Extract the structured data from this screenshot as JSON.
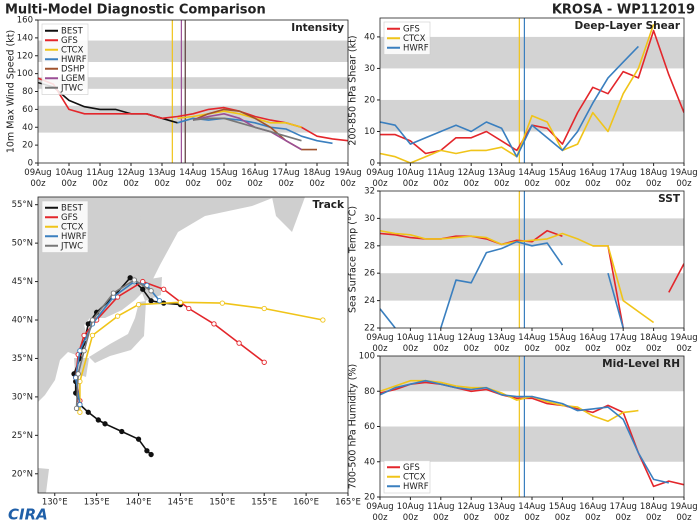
{
  "header": {
    "title": "Multi-Model Diagnostic Comparison",
    "storm": "KROSA - WP112019"
  },
  "logo": "CIRA",
  "chart_data": [
    {
      "type": "line",
      "title": "Intensity",
      "ylabel": "10m Max Wind Speed (kt)",
      "legend": "upper left",
      "x": [
        0,
        12,
        24,
        36,
        48,
        60,
        72,
        84,
        96,
        108,
        120,
        132,
        144,
        156,
        168,
        180,
        192,
        204,
        216,
        228,
        240
      ],
      "xlim": [
        0,
        240
      ],
      "xticks": [
        {
          "value": 0,
          "label": "09Aug 00z"
        },
        {
          "value": 24,
          "label": "10Aug 00z"
        },
        {
          "value": 48,
          "label": "11Aug 00z"
        },
        {
          "value": 72,
          "label": "12Aug 00z"
        },
        {
          "value": 96,
          "label": "13Aug 00z"
        },
        {
          "value": 120,
          "label": "14Aug 00z"
        },
        {
          "value": 144,
          "label": "15Aug 00z"
        },
        {
          "value": 168,
          "label": "16Aug 00z"
        },
        {
          "value": 192,
          "label": "17Aug 00z"
        },
        {
          "value": 216,
          "label": "18Aug 00z"
        },
        {
          "value": 240,
          "label": "19Aug 00z"
        }
      ],
      "ylim": [
        0,
        160
      ],
      "yticks": [
        0,
        20,
        40,
        60,
        80,
        100,
        120,
        140,
        160
      ],
      "bands": [
        [
          34,
          64
        ],
        [
          83,
          96
        ],
        [
          113,
          137
        ]
      ],
      "vlines": [
        {
          "x": 104,
          "color": "#f0c419"
        },
        {
          "x": 111,
          "color": "#9b4f96"
        },
        {
          "x": 114,
          "color": "#5a3a3a"
        }
      ],
      "series": [
        {
          "name": "BEST",
          "color": "#111111",
          "values": [
            90,
            85,
            70,
            63,
            60,
            60,
            55,
            55,
            50,
            45,
            null,
            null,
            null,
            null,
            null,
            null,
            null,
            null,
            null,
            null,
            null
          ]
        },
        {
          "name": "GFS",
          "color": "#e3262b",
          "values": [
            95,
            88,
            60,
            55,
            55,
            55,
            55,
            55,
            50,
            52,
            55,
            60,
            62,
            58,
            52,
            48,
            45,
            40,
            30,
            27,
            25
          ]
        },
        {
          "name": "CTCX",
          "color": "#f0c419",
          "values": [
            null,
            null,
            null,
            null,
            null,
            null,
            null,
            null,
            null,
            50,
            52,
            55,
            58,
            55,
            50,
            45,
            45,
            40,
            null,
            null,
            null
          ]
        },
        {
          "name": "HWRF",
          "color": "#3a7fbf",
          "values": [
            null,
            null,
            null,
            null,
            null,
            null,
            null,
            null,
            null,
            45,
            50,
            48,
            50,
            48,
            45,
            40,
            38,
            30,
            25,
            22,
            null
          ]
        },
        {
          "name": "DSHP",
          "color": "#a0522d",
          "values": [
            null,
            null,
            null,
            null,
            null,
            null,
            null,
            null,
            null,
            null,
            48,
            55,
            60,
            58,
            50,
            40,
            25,
            15,
            15,
            null,
            null
          ]
        },
        {
          "name": "LGEM",
          "color": "#9b4f96",
          "values": [
            null,
            null,
            null,
            null,
            null,
            null,
            null,
            null,
            null,
            null,
            48,
            52,
            55,
            50,
            40,
            35,
            25,
            15,
            null,
            null,
            null
          ]
        },
        {
          "name": "JTWC",
          "color": "#777777",
          "values": [
            null,
            null,
            null,
            null,
            null,
            null,
            null,
            null,
            null,
            null,
            48,
            50,
            50,
            45,
            40,
            35,
            30,
            25,
            null,
            null,
            null
          ]
        }
      ]
    },
    {
      "type": "line",
      "title": "Deep-Layer Shear",
      "ylabel": "200-850 hPa Shear (kt)",
      "legend": "upper left",
      "x": [
        0,
        12,
        24,
        36,
        48,
        60,
        72,
        84,
        96,
        108,
        120,
        132,
        144,
        156,
        168,
        180,
        192,
        204,
        216,
        228,
        240
      ],
      "xlim": [
        0,
        240
      ],
      "xticks": [
        {
          "value": 0,
          "label": "09Aug 00z"
        },
        {
          "value": 24,
          "label": "10Aug 00z"
        },
        {
          "value": 48,
          "label": "11Aug 00z"
        },
        {
          "value": 72,
          "label": "12Aug 00z"
        },
        {
          "value": 96,
          "label": "13Aug 00z"
        },
        {
          "value": 120,
          "label": "14Aug 00z"
        },
        {
          "value": 144,
          "label": "15Aug 00z"
        },
        {
          "value": 168,
          "label": "16Aug 00z"
        },
        {
          "value": 192,
          "label": "17Aug 00z"
        },
        {
          "value": 216,
          "label": "18Aug 00z"
        },
        {
          "value": 240,
          "label": "19Aug 00z"
        }
      ],
      "ylim": [
        0,
        46
      ],
      "yticks": [
        0,
        10,
        20,
        30,
        40
      ],
      "bands": [
        [
          10,
          20
        ],
        [
          30,
          40
        ]
      ],
      "vlines": [
        {
          "x": 110,
          "color": "#f0c419"
        },
        {
          "x": 114,
          "color": "#3a7fbf"
        }
      ],
      "series": [
        {
          "name": "GFS",
          "color": "#e3262b",
          "values": [
            9,
            9,
            7,
            3,
            4,
            8,
            8,
            10,
            7,
            4,
            12,
            11,
            6,
            16,
            24,
            22,
            29,
            27,
            42,
            28,
            16
          ]
        },
        {
          "name": "CTCX",
          "color": "#f0c419",
          "values": [
            3,
            2,
            0,
            2,
            4,
            3,
            4,
            4,
            5,
            2,
            15,
            13,
            4,
            6,
            16,
            10,
            22,
            30,
            44,
            null,
            null
          ]
        },
        {
          "name": "HWRF",
          "color": "#3a7fbf",
          "values": [
            13,
            12,
            6,
            8,
            10,
            12,
            10,
            13,
            11,
            2,
            12,
            8,
            4,
            10,
            19,
            27,
            32,
            37,
            null,
            null,
            null
          ]
        }
      ]
    },
    {
      "type": "line",
      "title": "Track",
      "legend": "upper left",
      "markers": true,
      "xlim": [
        128,
        165
      ],
      "xticks": [
        {
          "value": 130,
          "label": "130°E"
        },
        {
          "value": 135,
          "label": "135°E"
        },
        {
          "value": 140,
          "label": "140°E"
        },
        {
          "value": 145,
          "label": "145°E"
        },
        {
          "value": 150,
          "label": "150°E"
        },
        {
          "value": 155,
          "label": "155°E"
        },
        {
          "value": 160,
          "label": "160°E"
        },
        {
          "value": 165,
          "label": "165°E"
        }
      ],
      "ylim": [
        17.5,
        56
      ],
      "yticks": [
        {
          "value": 20,
          "label": "20°N"
        },
        {
          "value": 25,
          "label": "25°N"
        },
        {
          "value": 30,
          "label": "30°N"
        },
        {
          "value": 35,
          "label": "35°N"
        },
        {
          "value": 40,
          "label": "40°N"
        },
        {
          "value": 45,
          "label": "45°N"
        },
        {
          "value": 50,
          "label": "50°N"
        },
        {
          "value": 55,
          "label": "55°N"
        }
      ],
      "series": [
        {
          "name": "BEST",
          "color": "#111111",
          "marker_fill": true,
          "x": [
            141.5,
            141.0,
            140.0,
            138.0,
            136.0,
            135.2,
            134.0,
            133.0,
            132.5,
            132.5,
            132.3,
            133.0,
            133.5,
            134.0,
            135.0,
            137.0,
            139.0,
            140.5,
            141.5,
            143.0,
            145.0
          ],
          "values": [
            22.5,
            23.0,
            24.5,
            25.5,
            26.5,
            27.0,
            28.0,
            29.0,
            30.5,
            32.0,
            33.0,
            35.0,
            37.0,
            39.5,
            41.0,
            43.0,
            45.5,
            44.0,
            42.5,
            42.2,
            42.0
          ]
        },
        {
          "name": "GFS",
          "color": "#e3262b",
          "x": [
            133,
            132.5,
            132.8,
            133.5,
            135,
            137.5,
            140.5,
            143,
            146,
            149,
            152,
            155
          ],
          "values": [
            29.5,
            32.5,
            35.5,
            38.0,
            40.0,
            43.0,
            45.0,
            44.0,
            41.5,
            39.5,
            37.0,
            34.5
          ]
        },
        {
          "name": "CTCX",
          "color": "#f0c419",
          "x": [
            133,
            133,
            134.5,
            137.5,
            140,
            145,
            150,
            155,
            162
          ],
          "values": [
            28,
            32,
            38,
            40.5,
            42,
            42.3,
            42.2,
            41.5,
            40
          ]
        },
        {
          "name": "HWRF",
          "color": "#3a7fbf",
          "x": [
            133,
            132.5,
            133,
            134.5,
            137,
            139.5,
            141,
            142.5
          ],
          "values": [
            29,
            32.5,
            36,
            39.5,
            43,
            45,
            44.5,
            42.5
          ]
        },
        {
          "name": "JTWC",
          "color": "#777777",
          "x": [
            132.6,
            132.8,
            133.5,
            134.5,
            137,
            139.5,
            141.5
          ],
          "values": [
            28.5,
            33,
            36,
            40,
            43.5,
            45.2,
            43.8
          ]
        }
      ]
    },
    {
      "type": "line",
      "title": "SST",
      "ylabel": "Sea Surface Temp (°C)",
      "x": [
        0,
        12,
        24,
        36,
        48,
        60,
        72,
        84,
        96,
        108,
        120,
        132,
        144,
        156,
        168,
        180,
        192,
        204,
        216,
        228,
        240
      ],
      "xlim": [
        0,
        240
      ],
      "xticks": [
        {
          "value": 0,
          "label": "09Aug 00z"
        },
        {
          "value": 24,
          "label": "10Aug 00z"
        },
        {
          "value": 48,
          "label": "11Aug 00z"
        },
        {
          "value": 72,
          "label": "12Aug 00z"
        },
        {
          "value": 96,
          "label": "13Aug 00z"
        },
        {
          "value": 120,
          "label": "14Aug 00z"
        },
        {
          "value": 144,
          "label": "15Aug 00z"
        },
        {
          "value": 168,
          "label": "16Aug 00z"
        },
        {
          "value": 192,
          "label": "17Aug 00z"
        },
        {
          "value": 216,
          "label": "18Aug 00z"
        },
        {
          "value": 240,
          "label": "19Aug 00z"
        }
      ],
      "ylim": [
        22,
        32
      ],
      "yticks": [
        22,
        24,
        26,
        28,
        30,
        32
      ],
      "bands": [
        [
          24,
          26
        ],
        [
          28,
          30
        ]
      ],
      "vlines": [
        {
          "x": 110,
          "color": "#f0c419"
        },
        {
          "x": 114,
          "color": "#3a7fbf"
        }
      ],
      "series": [
        {
          "name": "GFS",
          "color": "#e3262b",
          "values": [
            28.9,
            28.8,
            28.6,
            28.5,
            28.5,
            28.7,
            28.7,
            28.5,
            28.1,
            28.4,
            28.3,
            29.1,
            28.7,
            null,
            28.0,
            28.0,
            22.0,
            null,
            null,
            24.6,
            26.7
          ]
        },
        {
          "name": "CTCX",
          "color": "#f0c419",
          "values": [
            29.1,
            28.9,
            28.8,
            28.5,
            28.5,
            28.6,
            28.7,
            28.6,
            28.1,
            28.3,
            28.4,
            28.5,
            28.9,
            28.5,
            28.0,
            28.0,
            24.0,
            23.2,
            22.4,
            null,
            null
          ]
        },
        {
          "name": "HWRF",
          "color": "#3a7fbf",
          "values": [
            23.4,
            22.0,
            null,
            null,
            22.0,
            25.5,
            25.3,
            27.5,
            27.8,
            28.3,
            28.0,
            28.2,
            26.6,
            null,
            null,
            26.0,
            22.0,
            null,
            null,
            null,
            null
          ]
        }
      ]
    },
    {
      "type": "line",
      "title": "Mid-Level RH",
      "ylabel": "700-500 hPa Humidity (%)",
      "legend": "lower left",
      "x": [
        0,
        12,
        24,
        36,
        48,
        60,
        72,
        84,
        96,
        108,
        120,
        132,
        144,
        156,
        168,
        180,
        192,
        204,
        216,
        228,
        240
      ],
      "xlim": [
        0,
        240
      ],
      "xticks": [
        {
          "value": 0,
          "label": "09Aug 00z"
        },
        {
          "value": 24,
          "label": "10Aug 00z"
        },
        {
          "value": 48,
          "label": "11Aug 00z"
        },
        {
          "value": 72,
          "label": "12Aug 00z"
        },
        {
          "value": 96,
          "label": "13Aug 00z"
        },
        {
          "value": 120,
          "label": "14Aug 00z"
        },
        {
          "value": 144,
          "label": "15Aug 00z"
        },
        {
          "value": 168,
          "label": "16Aug 00z"
        },
        {
          "value": 192,
          "label": "17Aug 00z"
        },
        {
          "value": 216,
          "label": "18Aug 00z"
        },
        {
          "value": 240,
          "label": "19Aug 00z"
        }
      ],
      "ylim": [
        20,
        100
      ],
      "yticks": [
        20,
        40,
        60,
        80,
        100
      ],
      "bands": [
        [
          40,
          60
        ],
        [
          80,
          100
        ]
      ],
      "vlines": [
        {
          "x": 110,
          "color": "#f0c419"
        },
        {
          "x": 114,
          "color": "#3a7fbf"
        }
      ],
      "series": [
        {
          "name": "GFS",
          "color": "#e3262b",
          "values": [
            79,
            81,
            84,
            85,
            84,
            82,
            80,
            81,
            78,
            76,
            76,
            73,
            72,
            70,
            68,
            72,
            68,
            45,
            26,
            29,
            27
          ]
        },
        {
          "name": "CTCX",
          "color": "#f0c419",
          "values": [
            80,
            83,
            86,
            86,
            85,
            83,
            82,
            82,
            79,
            75,
            77,
            74,
            72,
            71,
            66,
            63,
            68,
            69,
            null,
            null,
            null
          ]
        },
        {
          "name": "HWRF",
          "color": "#3a7fbf",
          "values": [
            78,
            82,
            84,
            86,
            84,
            82,
            81,
            82,
            78,
            77,
            77,
            75,
            73,
            69,
            70,
            71,
            64,
            45,
            30,
            28,
            null
          ]
        }
      ]
    }
  ]
}
